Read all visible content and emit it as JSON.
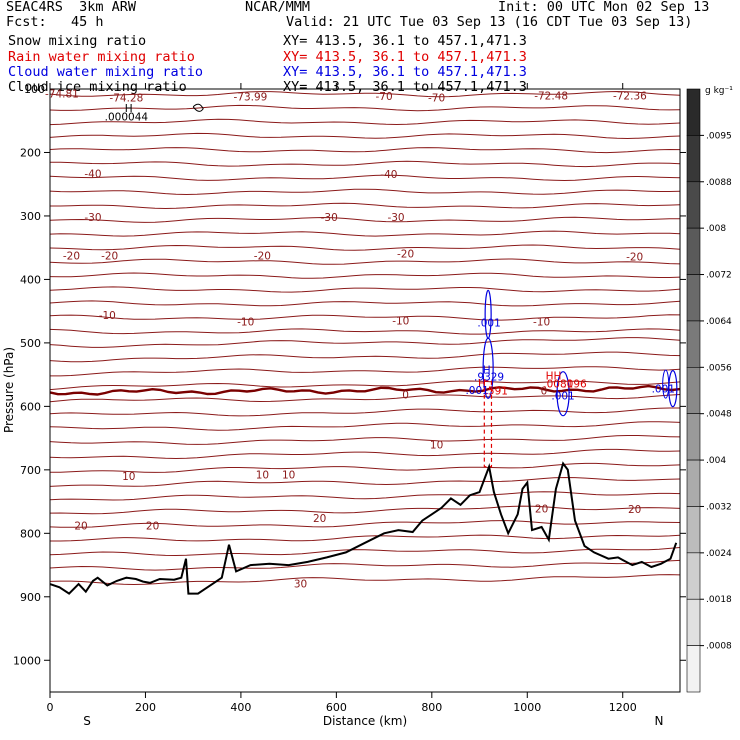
{
  "header": {
    "model": "SEAC4RS  3km ARW",
    "org": "NCAR/MMM",
    "init": "Init: 00 UTC Mon 02 Sep 13",
    "fcst": "Fcst:   45 h",
    "valid": "Valid: 21 UTC Tue 03 Sep 13 (16 CDT Tue 03 Sep 13)",
    "fields": [
      {
        "name": "Snow mixing ratio",
        "xy": "XY= 413.5, 36.1 to 457.1,471.3",
        "color": "#000000"
      },
      {
        "name": "Rain water mixing ratio",
        "xy": "XY= 413.5, 36.1 to 457.1,471.3",
        "color": "#e00000"
      },
      {
        "name": "Cloud water mixing ratio",
        "xy": "XY= 413.5, 36.1 to 457.1,471.3",
        "color": "#0000e0"
      },
      {
        "name": "Cloud ice mixing ratio",
        "xy": "XY= 413.5, 36.1 to 457.1,471.3",
        "color": "#000000"
      }
    ]
  },
  "chart_data": {
    "type": "contour",
    "xlabel": "Distance (km)",
    "ylabel": "Pressure (hPa)",
    "xlim": [
      0,
      1320
    ],
    "ylim": [
      1050,
      100
    ],
    "x_ticks": [
      0,
      200,
      400,
      600,
      800,
      1000,
      1200
    ],
    "y_ticks": [
      200,
      300,
      400,
      500,
      600,
      700,
      800,
      900,
      1000
    ],
    "y_tick_labels": [
      "200",
      "300",
      "400",
      "500",
      "600",
      "700",
      "800",
      "900",
      "1000"
    ],
    "y_axis_note": "100",
    "direction_left": "S",
    "direction_right": "N",
    "temperature_contour_color": "#8b1a1a",
    "zero_isotherm_color": "#7a0000",
    "temperature_labels": [
      {
        "text": "-74.28",
        "x": 160,
        "p": 113
      },
      {
        "text": "-74.81",
        "x": 25,
        "p": 107
      },
      {
        "text": "-73.99",
        "x": 420,
        "p": 112
      },
      {
        "text": "-70",
        "x": 700,
        "p": 111
      },
      {
        "text": "-70",
        "x": 810,
        "p": 113
      },
      {
        "text": "-72.48",
        "x": 1050,
        "p": 110
      },
      {
        "text": "-72.36",
        "x": 1215,
        "p": 110
      },
      {
        "text": "-40",
        "x": 90,
        "p": 233
      },
      {
        "text": "-40",
        "x": 710,
        "p": 234
      },
      {
        "text": "-30",
        "x": 90,
        "p": 302
      },
      {
        "text": "-30",
        "x": 585,
        "p": 302
      },
      {
        "text": "-30",
        "x": 725,
        "p": 302
      },
      {
        "text": "-20",
        "x": 45,
        "p": 362
      },
      {
        "text": "-20",
        "x": 125,
        "p": 362
      },
      {
        "text": "-20",
        "x": 445,
        "p": 362
      },
      {
        "text": "-20",
        "x": 745,
        "p": 359
      },
      {
        "text": "-20",
        "x": 1225,
        "p": 364
      },
      {
        "text": "-10",
        "x": 120,
        "p": 456
      },
      {
        "text": "-10",
        "x": 410,
        "p": 466
      },
      {
        "text": "-10",
        "x": 735,
        "p": 465
      },
      {
        "text": "-10",
        "x": 1030,
        "p": 466
      },
      {
        "text": "0",
        "x": 745,
        "p": 581
      },
      {
        "text": "0",
        "x": 1035,
        "p": 575
      },
      {
        "text": "10",
        "x": 810,
        "p": 660
      },
      {
        "text": "10",
        "x": 165,
        "p": 710
      },
      {
        "text": "10",
        "x": 445,
        "p": 707
      },
      {
        "text": "10",
        "x": 500,
        "p": 707
      },
      {
        "text": "20",
        "x": 65,
        "p": 788
      },
      {
        "text": "20",
        "x": 215,
        "p": 788
      },
      {
        "text": "20",
        "x": 565,
        "p": 776
      },
      {
        "text": "20",
        "x": 1030,
        "p": 761
      },
      {
        "text": "20",
        "x": 1225,
        "p": 762
      },
      {
        "text": "30",
        "x": 525,
        "p": 879
      }
    ],
    "extrema_labels": [
      {
        "text": "H",
        "x": 165,
        "p": 130,
        "color": "#000000"
      },
      {
        "text": ".000044",
        "x": 160,
        "p": 143,
        "color": "#000000"
      },
      {
        "text": ".001",
        "x": 920,
        "p": 468,
        "color": "#0000e0"
      },
      {
        "text": "H",
        "x": 915,
        "p": 542,
        "color": "#0000e0"
      },
      {
        "text": ".9329",
        "x": 920,
        "p": 553,
        "color": "#0000e0"
      },
      {
        "text": "H",
        "x": 905,
        "p": 563,
        "color": "#e00000"
      },
      {
        "text": ".001",
        "x": 895,
        "p": 574,
        "color": "#0000e0"
      },
      {
        "text": ".591",
        "x": 935,
        "p": 575,
        "color": "#e00000"
      },
      {
        "text": "HH",
        "x": 1055,
        "p": 551,
        "color": "#e00000"
      },
      {
        "text": ".0081",
        "x": 1065,
        "p": 564,
        "color": "#e00000"
      },
      {
        "text": ".096",
        "x": 1100,
        "p": 564,
        "color": "#e00000"
      },
      {
        "text": ".001",
        "x": 1075,
        "p": 583,
        "color": "#0000e0"
      },
      {
        "text": ".001",
        "x": 1285,
        "p": 572,
        "color": "#0000e0"
      }
    ],
    "terrain_pressure_hpa": [
      [
        0,
        880
      ],
      [
        20,
        885
      ],
      [
        40,
        895
      ],
      [
        60,
        880
      ],
      [
        75,
        892
      ],
      [
        90,
        875
      ],
      [
        100,
        870
      ],
      [
        120,
        882
      ],
      [
        140,
        875
      ],
      [
        160,
        870
      ],
      [
        180,
        872
      ],
      [
        195,
        876
      ],
      [
        210,
        878
      ],
      [
        230,
        872
      ],
      [
        260,
        873
      ],
      [
        275,
        870
      ],
      [
        285,
        840
      ],
      [
        290,
        895
      ],
      [
        310,
        895
      ],
      [
        340,
        880
      ],
      [
        360,
        870
      ],
      [
        375,
        818
      ],
      [
        390,
        860
      ],
      [
        420,
        850
      ],
      [
        460,
        848
      ],
      [
        500,
        850
      ],
      [
        540,
        845
      ],
      [
        580,
        838
      ],
      [
        620,
        830
      ],
      [
        660,
        815
      ],
      [
        700,
        800
      ],
      [
        730,
        795
      ],
      [
        760,
        798
      ],
      [
        780,
        780
      ],
      [
        800,
        770
      ],
      [
        820,
        760
      ],
      [
        840,
        745
      ],
      [
        860,
        755
      ],
      [
        880,
        740
      ],
      [
        900,
        735
      ],
      [
        910,
        715
      ],
      [
        920,
        695
      ],
      [
        930,
        735
      ],
      [
        945,
        770
      ],
      [
        960,
        800
      ],
      [
        980,
        770
      ],
      [
        990,
        730
      ],
      [
        1000,
        720
      ],
      [
        1010,
        795
      ],
      [
        1030,
        790
      ],
      [
        1045,
        810
      ],
      [
        1060,
        730
      ],
      [
        1075,
        690
      ],
      [
        1085,
        700
      ],
      [
        1100,
        780
      ],
      [
        1120,
        820
      ],
      [
        1140,
        830
      ],
      [
        1170,
        840
      ],
      [
        1190,
        838
      ],
      [
        1200,
        842
      ],
      [
        1220,
        850
      ],
      [
        1240,
        845
      ],
      [
        1260,
        853
      ],
      [
        1280,
        848
      ],
      [
        1300,
        840
      ],
      [
        1312,
        815
      ]
    ],
    "colorbar": {
      "unit": "g kg⁻¹",
      "labels": [
        ".0095",
        ".0088",
        ".008",
        ".0072",
        ".0064",
        ".0056",
        ".0048",
        ".004",
        ".0032",
        ".0024",
        ".0018",
        ".0008"
      ],
      "colors": [
        "#2a2a2a",
        "#383838",
        "#4a4a4a",
        "#5a5a5a",
        "#6a6a6a",
        "#7a7a7a",
        "#8a8a8a",
        "#9a9a9a",
        "#ababab",
        "#bcbcbc",
        "#cecece",
        "#e0e0e0",
        "#f2f2f2"
      ]
    }
  }
}
